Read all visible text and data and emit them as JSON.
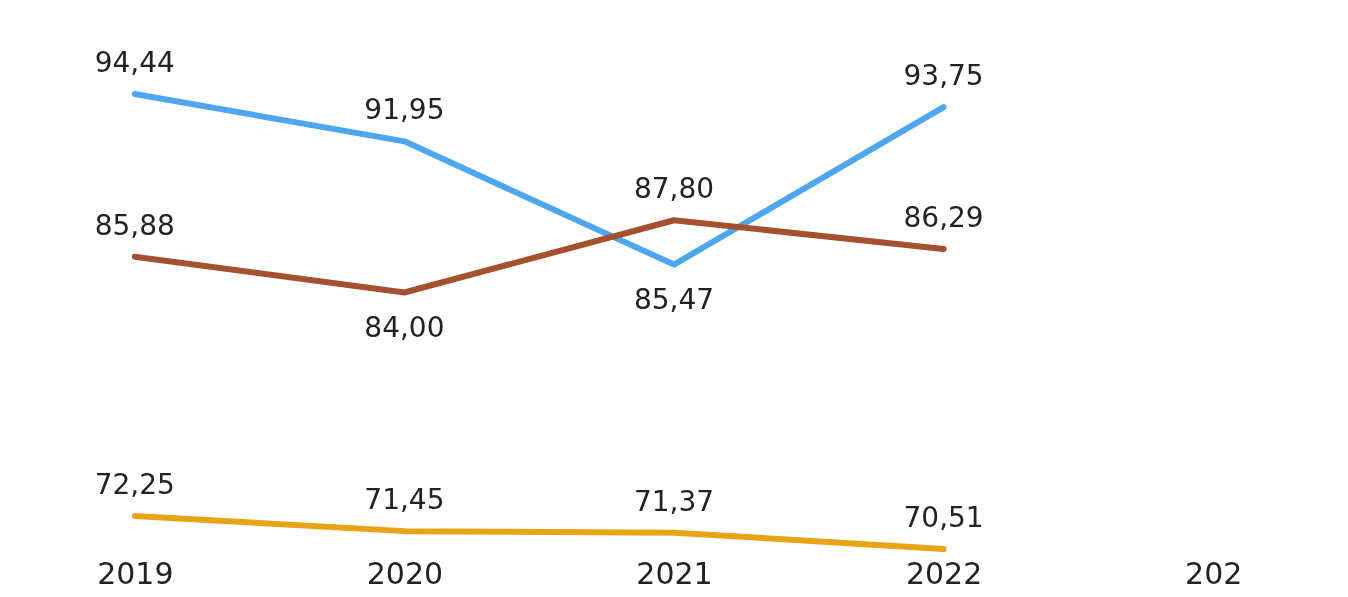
{
  "chart_data": {
    "type": "line",
    "categories": [
      "2019",
      "2020",
      "2021",
      "2022",
      "202"
    ],
    "series": [
      {
        "color": "#4ea6f0",
        "values": [
          94.44,
          91.95,
          85.47,
          93.75,
          null
        ],
        "value_labels": [
          "94,44",
          "91,95",
          "85,47",
          "93,75",
          null
        ]
      },
      {
        "color": "#a5502f",
        "values": [
          85.88,
          84.0,
          87.8,
          86.29,
          null
        ],
        "value_labels": [
          "85,88",
          "84,00",
          "87,80",
          "86,29",
          null
        ]
      },
      {
        "color": "#e8a317",
        "values": [
          72.25,
          71.45,
          71.37,
          70.51,
          null
        ],
        "value_labels": [
          "72,25",
          "71,45",
          "71,37",
          "70,51",
          null
        ]
      }
    ],
    "tick_labels": "x",
    "marker": "none",
    "line_style": "solid"
  }
}
